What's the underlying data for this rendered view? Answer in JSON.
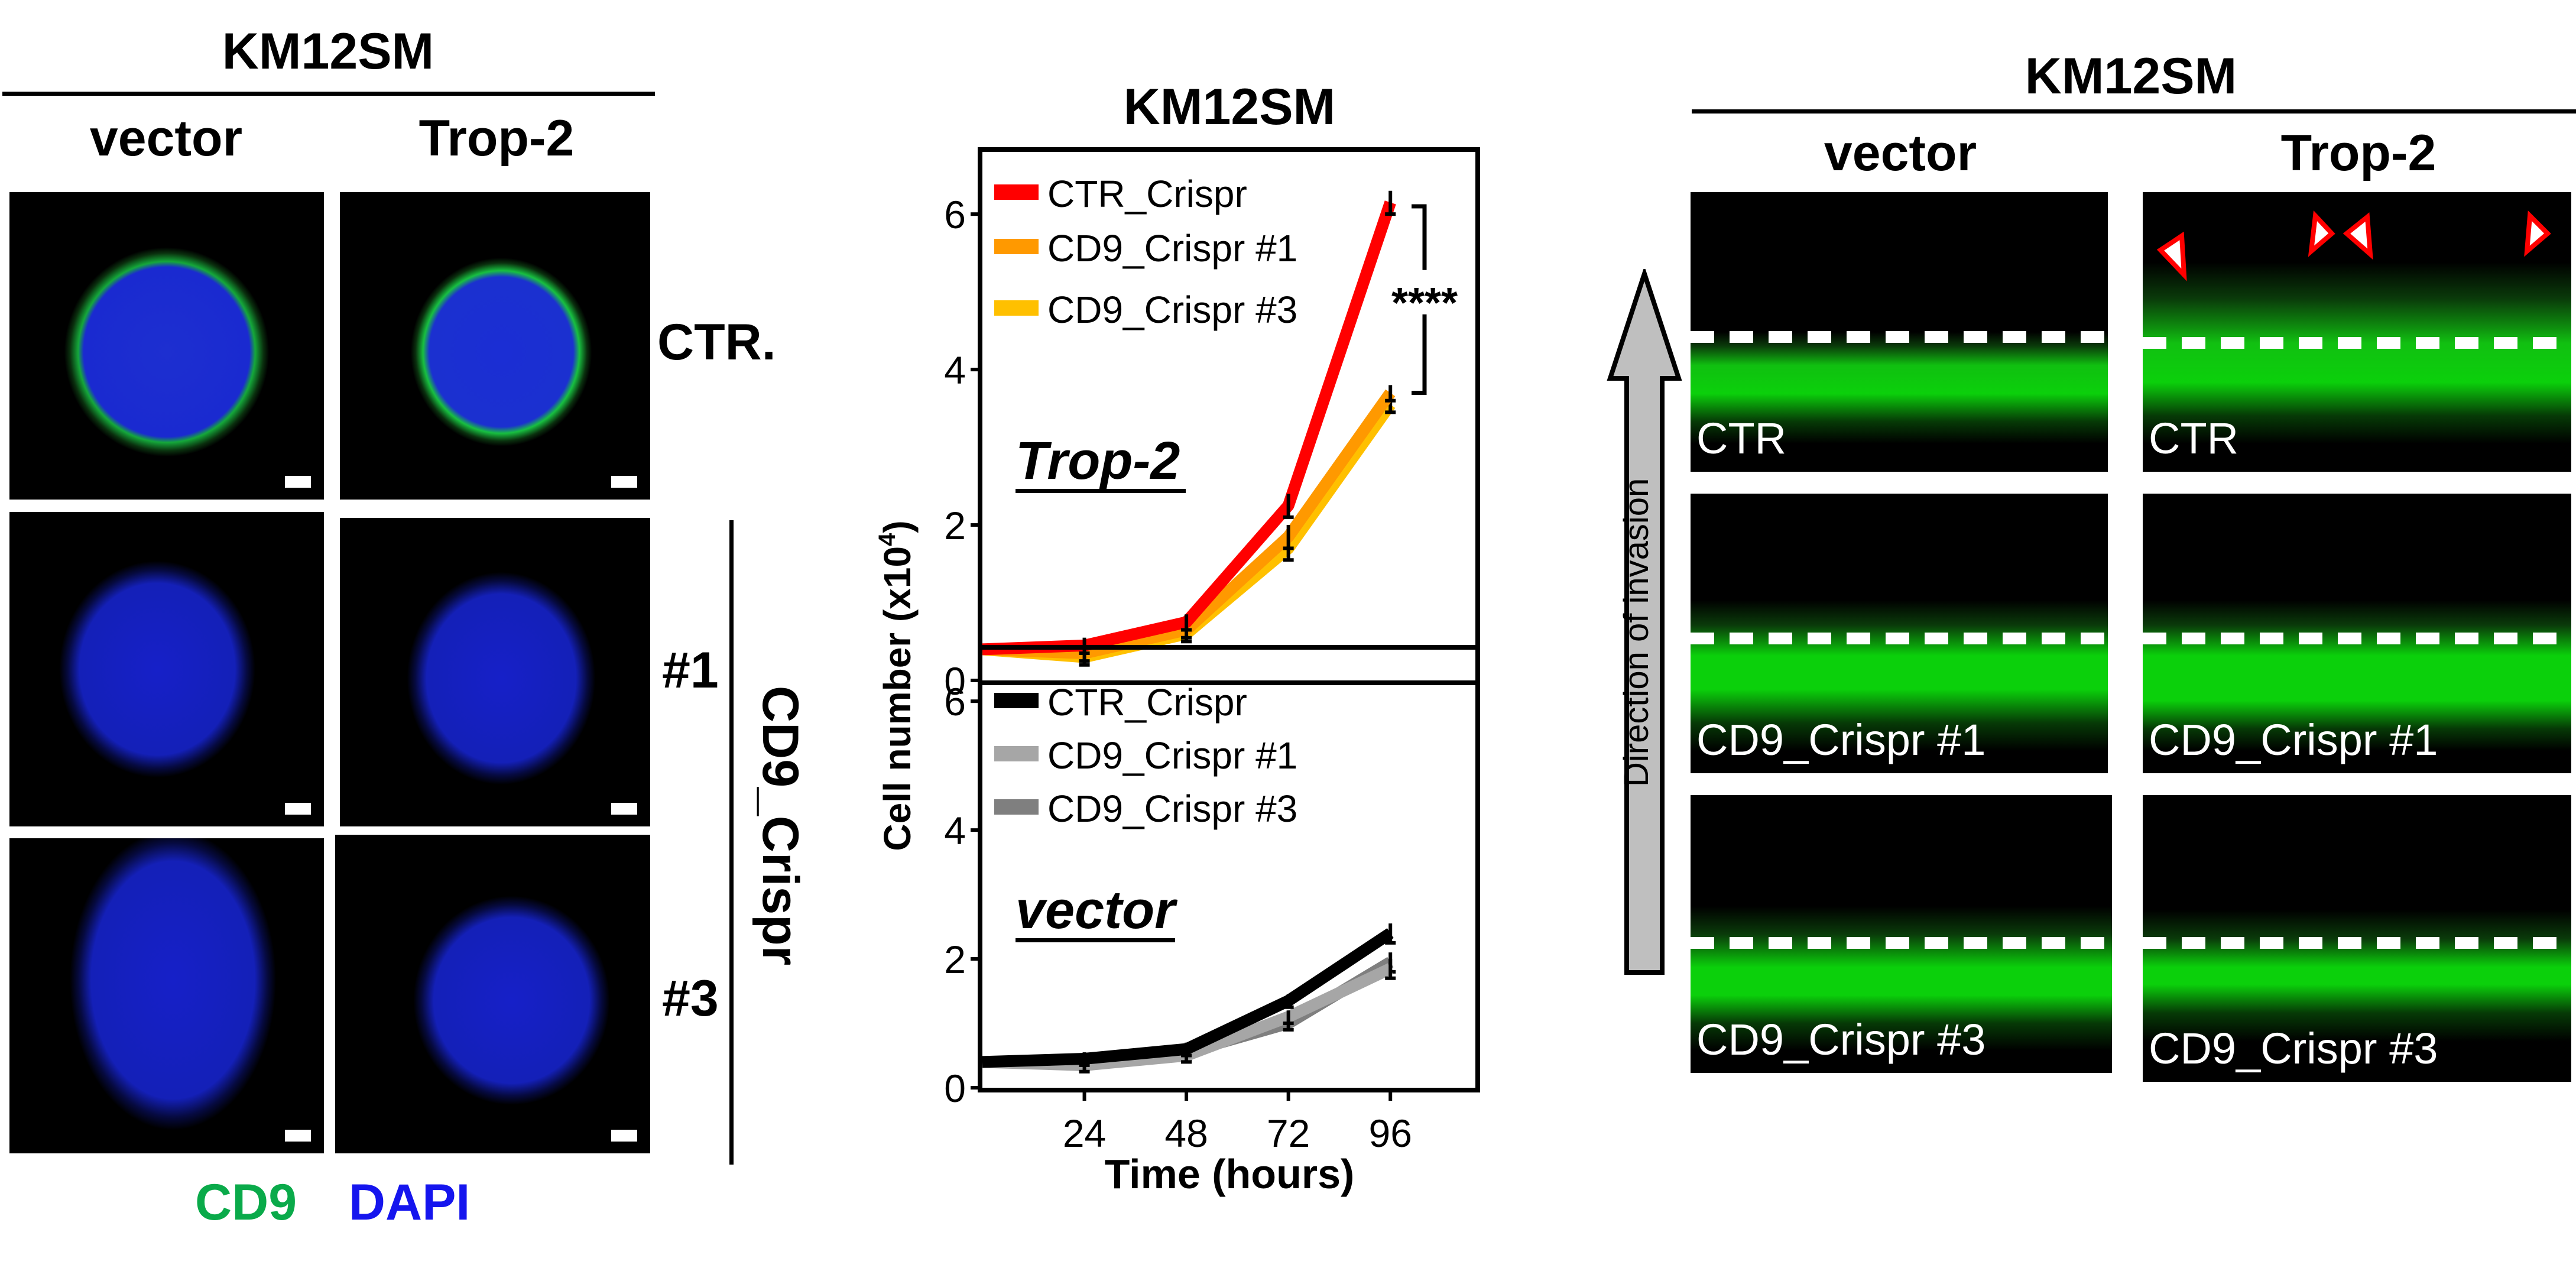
{
  "left_panel": {
    "cell_line": "KM12SM",
    "columns": [
      "vector",
      "Trop-2"
    ],
    "rows": [
      "CTR.",
      "#1",
      "#3"
    ],
    "group_label": "CD9_Crispr",
    "stain_legend": [
      {
        "label": "CD9",
        "color": "#0aaa4a"
      },
      {
        "label": "DAPI",
        "color": "#1515ee"
      }
    ]
  },
  "right_panel": {
    "cell_line": "KM12SM",
    "columns": [
      "vector",
      "Trop-2"
    ],
    "row_labels": [
      "CTR",
      "CD9_Crispr #1",
      "CD9_Crispr #3"
    ],
    "arrow_label": "Direction of invasion",
    "arrowheads_color": "#ff0000"
  },
  "chart_data": [
    {
      "type": "line",
      "title": "KM12SM",
      "panel_label": "Trop-2",
      "xlabel": "Time (hours)",
      "ylabel": "Cell number (x10^4)",
      "ylabel_main": "Cell number (x10",
      "ylabel_exp": "4",
      "ylabel_close": ")",
      "x": [
        0,
        24,
        48,
        72,
        96
      ],
      "xlim": [
        0,
        116
      ],
      "ylim": [
        0,
        6.8
      ],
      "xticks": [
        24,
        48,
        72,
        96
      ],
      "yticks": [
        0,
        2,
        4,
        6
      ],
      "legend_position": "top-left",
      "significance": "****",
      "series": [
        {
          "name": "CTR_Crispr",
          "color": "#ff0000",
          "values": [
            0.4,
            0.45,
            0.75,
            2.25,
            6.15
          ],
          "err": [
            0.05,
            0.1,
            0.1,
            0.15,
            0.15
          ]
        },
        {
          "name": "CD9_Crispr #1",
          "color": "#ff9900",
          "values": [
            0.4,
            0.35,
            0.65,
            1.85,
            3.7
          ],
          "err": [
            0.05,
            0.1,
            0.1,
            0.15,
            0.1
          ]
        },
        {
          "name": "CD9_Crispr #3",
          "color": "#ffc000",
          "values": [
            0.4,
            0.3,
            0.6,
            1.7,
            3.55
          ],
          "err": [
            0.05,
            0.1,
            0.1,
            0.15,
            0.1
          ]
        }
      ]
    },
    {
      "type": "line",
      "title": "",
      "panel_label": "vector",
      "xlabel": "Time (hours)",
      "ylabel": "Cell number (x10^4)",
      "x": [
        0,
        24,
        48,
        72,
        96
      ],
      "xlim": [
        0,
        116
      ],
      "ylim": [
        0,
        6.8
      ],
      "xticks": [
        24,
        48,
        72,
        96
      ],
      "yticks": [
        0,
        2,
        4,
        6
      ],
      "legend_position": "top-left",
      "series": [
        {
          "name": "CTR_Crispr",
          "color": "#000000",
          "values": [
            0.4,
            0.45,
            0.6,
            1.35,
            2.4
          ],
          "err": [
            0.05,
            0.1,
            0.1,
            0.1,
            0.15
          ]
        },
        {
          "name": "CD9_Crispr #1",
          "color": "#a6a6a6",
          "values": [
            0.4,
            0.35,
            0.5,
            1.1,
            1.85
          ],
          "err": [
            0.05,
            0.1,
            0.1,
            0.1,
            0.15
          ]
        },
        {
          "name": "CD9_Crispr #3",
          "color": "#7f7f7f",
          "values": [
            0.4,
            0.4,
            0.55,
            1.0,
            1.95
          ],
          "err": [
            0.05,
            0.1,
            0.1,
            0.1,
            0.15
          ]
        }
      ]
    }
  ]
}
